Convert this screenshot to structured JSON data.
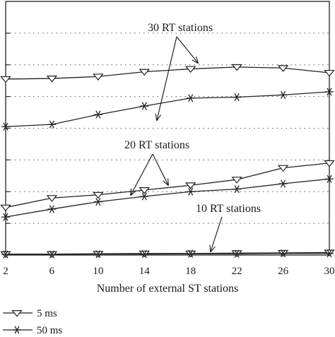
{
  "chart_data": {
    "type": "line",
    "xlabel": "Number of external ST stations",
    "ylabel": "",
    "x": [
      2,
      6,
      10,
      14,
      18,
      22,
      26,
      30
    ],
    "xlim": [
      2,
      30
    ],
    "ylim": [
      0,
      8
    ],
    "grid": "dotted-horizontal",
    "series": [
      {
        "name": "5 ms",
        "group": "30 RT stations",
        "marker": "triangle-down",
        "values": [
          5.55,
          5.57,
          5.63,
          5.78,
          5.87,
          5.93,
          5.9,
          5.75
        ]
      },
      {
        "name": "50 ms",
        "group": "30 RT stations",
        "marker": "asterisk",
        "values": [
          4.05,
          4.12,
          4.43,
          4.7,
          4.95,
          4.98,
          5.05,
          5.15
        ]
      },
      {
        "name": "5 ms",
        "group": "20 RT stations",
        "marker": "triangle-down",
        "values": [
          1.5,
          1.8,
          1.9,
          2.05,
          2.2,
          2.38,
          2.75,
          2.9
        ]
      },
      {
        "name": "50 ms",
        "group": "20 RT stations",
        "marker": "asterisk",
        "values": [
          1.2,
          1.45,
          1.68,
          1.85,
          2.0,
          2.08,
          2.25,
          2.4
        ]
      },
      {
        "name": "5 ms",
        "group": "10 RT stations",
        "marker": "triangle-down",
        "values": [
          0.03,
          0.03,
          0.04,
          0.05,
          0.05,
          0.06,
          0.07,
          0.08
        ]
      },
      {
        "name": "50 ms",
        "group": "10 RT stations",
        "marker": "asterisk",
        "values": [
          0.02,
          0.02,
          0.03,
          0.03,
          0.04,
          0.04,
          0.05,
          0.05
        ]
      }
    ],
    "annotations": [
      "30 RT stations",
      "20 RT stations",
      "10 RT stations"
    ],
    "legend": {
      "placement": "bottom-left",
      "entries": [
        {
          "label": "5 ms",
          "marker": "triangle-down"
        },
        {
          "label": "50 ms",
          "marker": "asterisk"
        }
      ]
    }
  }
}
